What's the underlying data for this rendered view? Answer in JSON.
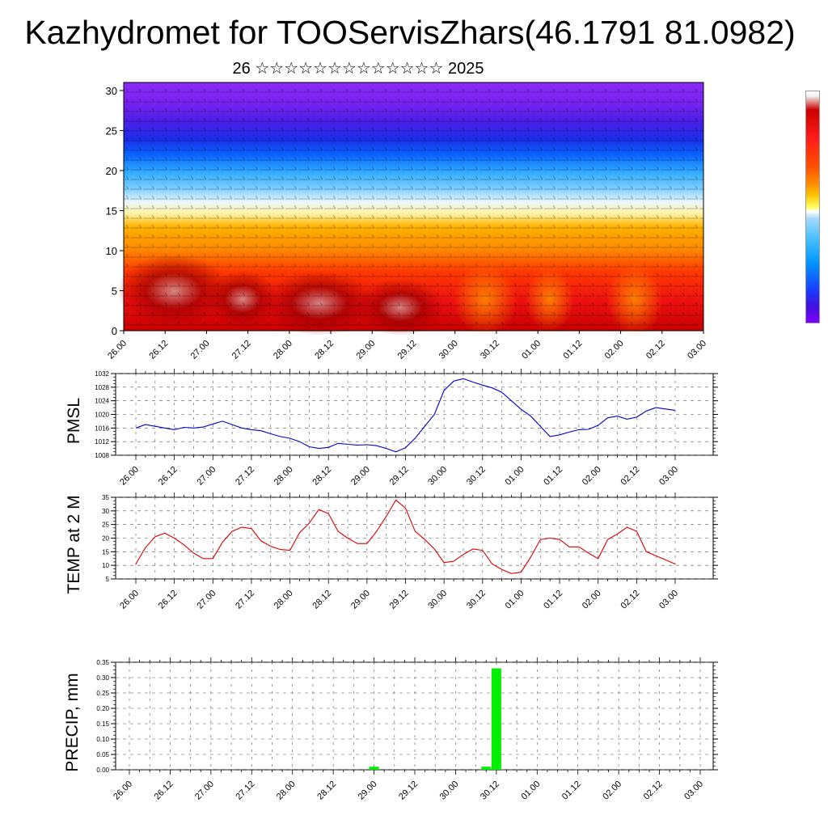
{
  "title": "Kazhydromet for TOOServisZhars(46.1791 81.0982)",
  "subtitle": "26 ☆☆☆☆☆☆☆☆☆☆☆☆☆ 2025",
  "colors": {
    "pmsl_line": "#0000cc",
    "temp_line": "#dd0000",
    "precip_bar": "#00ee00"
  },
  "chart_data": [
    {
      "type": "heatmap",
      "name": "cross-section",
      "title": "",
      "xlabel": "",
      "ylabel": "",
      "x_tick_labels": [
        "26.00",
        "26.12",
        "27.00",
        "27.12",
        "28.00",
        "28.12",
        "29.00",
        "29.12",
        "30.00",
        "30.12",
        "01.00",
        "01.12",
        "02.00",
        "02.12",
        "03.00"
      ],
      "y_ticks": [
        0,
        5,
        10,
        15,
        20,
        25,
        30
      ],
      "ylim": [
        0,
        31
      ],
      "color_levels_bottom_to_top": [
        "dark-red",
        "red",
        "orange",
        "yellow",
        "light-blue",
        "blue",
        "violet"
      ],
      "colorbar_placement": "right"
    },
    {
      "type": "line",
      "name": "pmsl",
      "ylabel": "PMSL",
      "y_ticks": [
        1008,
        1012,
        1016,
        1020,
        1024,
        1028,
        1032
      ],
      "ylim": [
        1008,
        1032
      ],
      "x_tick_labels": [
        "26.00",
        "26.12",
        "27.00",
        "27.12",
        "28.00",
        "28.12",
        "29.00",
        "29.12",
        "30.00",
        "30.12",
        "01.00",
        "01.12",
        "02.00",
        "02.12",
        "03.00"
      ],
      "x_hours": [
        0,
        3,
        6,
        9,
        12,
        15,
        18,
        21,
        24,
        27,
        30,
        33,
        36,
        39,
        42,
        45,
        48,
        51,
        54,
        57,
        60,
        63,
        66,
        69,
        72,
        75,
        78,
        81,
        84,
        87,
        90,
        93,
        96,
        99,
        102,
        105,
        108,
        111,
        114,
        117,
        120,
        123,
        126,
        129,
        132,
        135,
        138,
        141,
        144,
        147,
        150,
        153,
        156,
        159,
        162,
        165,
        168
      ],
      "values": [
        1016,
        1017,
        1016.5,
        1016,
        1015.5,
        1016.2,
        1016,
        1016.3,
        1017.2,
        1018,
        1017,
        1016,
        1015.5,
        1015.2,
        1014.3,
        1013.5,
        1013,
        1012,
        1010.5,
        1010,
        1010.3,
        1011.5,
        1011.2,
        1011,
        1011.1,
        1010.8,
        1010,
        1009,
        1010.2,
        1013,
        1016.5,
        1020,
        1027,
        1029.8,
        1030.5,
        1029.5,
        1028.6,
        1027.8,
        1026.5,
        1024,
        1021.5,
        1019.5,
        1016.5,
        1013.5,
        1014,
        1014.8,
        1015.5,
        1015.6,
        1016.8,
        1019,
        1019.5,
        1018.6,
        1019.2,
        1021,
        1022,
        1021.6,
        1021.2
      ]
    },
    {
      "type": "line",
      "name": "temp",
      "ylabel": "TEMP at 2 M",
      "y_ticks": [
        5,
        10,
        15,
        20,
        25,
        30,
        35
      ],
      "ylim": [
        5,
        35
      ],
      "x_tick_labels": [
        "26.00",
        "26.12",
        "27.00",
        "27.12",
        "28.00",
        "28.12",
        "29.00",
        "29.12",
        "30.00",
        "30.12",
        "01.00",
        "01.12",
        "02.00",
        "02.12",
        "03.00"
      ],
      "x_hours": [
        0,
        3,
        6,
        9,
        12,
        15,
        18,
        21,
        24,
        27,
        30,
        33,
        36,
        39,
        42,
        45,
        48,
        51,
        54,
        57,
        60,
        63,
        66,
        69,
        72,
        75,
        78,
        81,
        84,
        87,
        90,
        93,
        96,
        99,
        102,
        105,
        108,
        111,
        114,
        117,
        120,
        123,
        126,
        129,
        132,
        135,
        138,
        141,
        144,
        147,
        150,
        153,
        156,
        159,
        162,
        165,
        168
      ],
      "values": [
        10.5,
        16.5,
        20.5,
        21.8,
        20,
        17.5,
        14.5,
        12.5,
        12.5,
        18.5,
        22.5,
        24,
        23.5,
        19,
        17,
        15.8,
        15.5,
        22,
        25.5,
        30.5,
        29,
        22.5,
        20,
        18,
        18,
        22.5,
        28,
        34,
        31,
        22.5,
        19.5,
        16,
        11,
        11.5,
        14,
        16,
        15.5,
        10.5,
        8.5,
        7,
        7.5,
        13,
        19.5,
        20,
        19.5,
        16.8,
        16.8,
        14.5,
        12.5,
        19.5,
        21.5,
        24,
        22.5,
        15,
        13.5,
        12,
        10.5
      ]
    },
    {
      "type": "bar",
      "name": "precip",
      "ylabel": "PRECIP, mm",
      "y_ticks": [
        "0.00",
        "0.05",
        "0.10",
        "0.15",
        "0.20",
        "0.25",
        "0.30",
        "0.35"
      ],
      "ylim": [
        0,
        0.35
      ],
      "x_tick_labels": [
        "26.00",
        "26.12",
        "27.00",
        "27.12",
        "28.00",
        "28.12",
        "29.00",
        "29.12",
        "30.00",
        "30.12",
        "01.00",
        "01.12",
        "02.00",
        "02.12",
        "03.00"
      ],
      "bars": [
        {
          "hour": 72,
          "value": 0.01
        },
        {
          "hour": 105,
          "value": 0.01
        },
        {
          "hour": 108,
          "value": 0.33
        }
      ]
    }
  ]
}
